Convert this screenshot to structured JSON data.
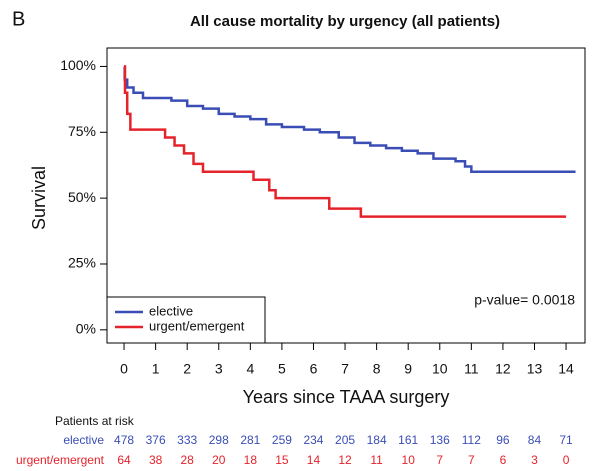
{
  "chart_data": {
    "type": "step",
    "panel_label": "B",
    "title": "All cause mortality by urgency (all patients)",
    "x_label": "Years since TAAA surgery",
    "y_label": "Survival",
    "xlim": [
      -0.54,
      14.6
    ],
    "ylim": [
      -5,
      107
    ],
    "xticks": [
      0,
      1,
      2,
      3,
      4,
      5,
      6,
      7,
      8,
      9,
      10,
      11,
      12,
      13,
      14
    ],
    "yticks": [
      {
        "value": 0,
        "label": "0%"
      },
      {
        "value": 25,
        "label": "25%"
      },
      {
        "value": 50,
        "label": "50%"
      },
      {
        "value": 75,
        "label": "75%"
      },
      {
        "value": 100,
        "label": "100%"
      }
    ],
    "legend": "bottom-left",
    "annotation": "p-value= 0.0018",
    "series": [
      {
        "name": "elective",
        "color": "#3a4db5",
        "x": [
          0,
          0.02,
          0.1,
          0.3,
          0.6,
          1.5,
          2,
          2.5,
          3,
          3.5,
          4,
          4.5,
          5,
          5.7,
          6.2,
          6.8,
          7.3,
          7.8,
          8.3,
          8.8,
          9.3,
          9.8,
          10.5,
          10.8,
          11,
          14.3
        ],
        "values": [
          100,
          95,
          92,
          90,
          88,
          87,
          85,
          84,
          82,
          81,
          80,
          78,
          77,
          76,
          75,
          73,
          71,
          70,
          69,
          68,
          67,
          65,
          64,
          62,
          60,
          60
        ]
      },
      {
        "name": "urgent/emergent",
        "color": "#e5232b",
        "x": [
          0,
          0.03,
          0.1,
          0.2,
          1.3,
          1.6,
          1.9,
          2.2,
          2.5,
          4.1,
          4.6,
          4.8,
          6.5,
          7.5,
          14.0
        ],
        "values": [
          100,
          90,
          82,
          76,
          73,
          70,
          67,
          63,
          60,
          57,
          53,
          50,
          46,
          43,
          43
        ]
      }
    ],
    "risk_table": {
      "title": "Patients at risk",
      "rows": [
        {
          "name": "elective",
          "color": "#3a4db5",
          "values": [
            478,
            376,
            333,
            298,
            281,
            259,
            234,
            205,
            184,
            161,
            136,
            112,
            96,
            84,
            71
          ]
        },
        {
          "name": "urgent/emergent",
          "color": "#e5232b",
          "values": [
            64,
            38,
            28,
            20,
            18,
            15,
            14,
            12,
            11,
            10,
            7,
            7,
            6,
            3,
            0
          ]
        }
      ]
    }
  }
}
